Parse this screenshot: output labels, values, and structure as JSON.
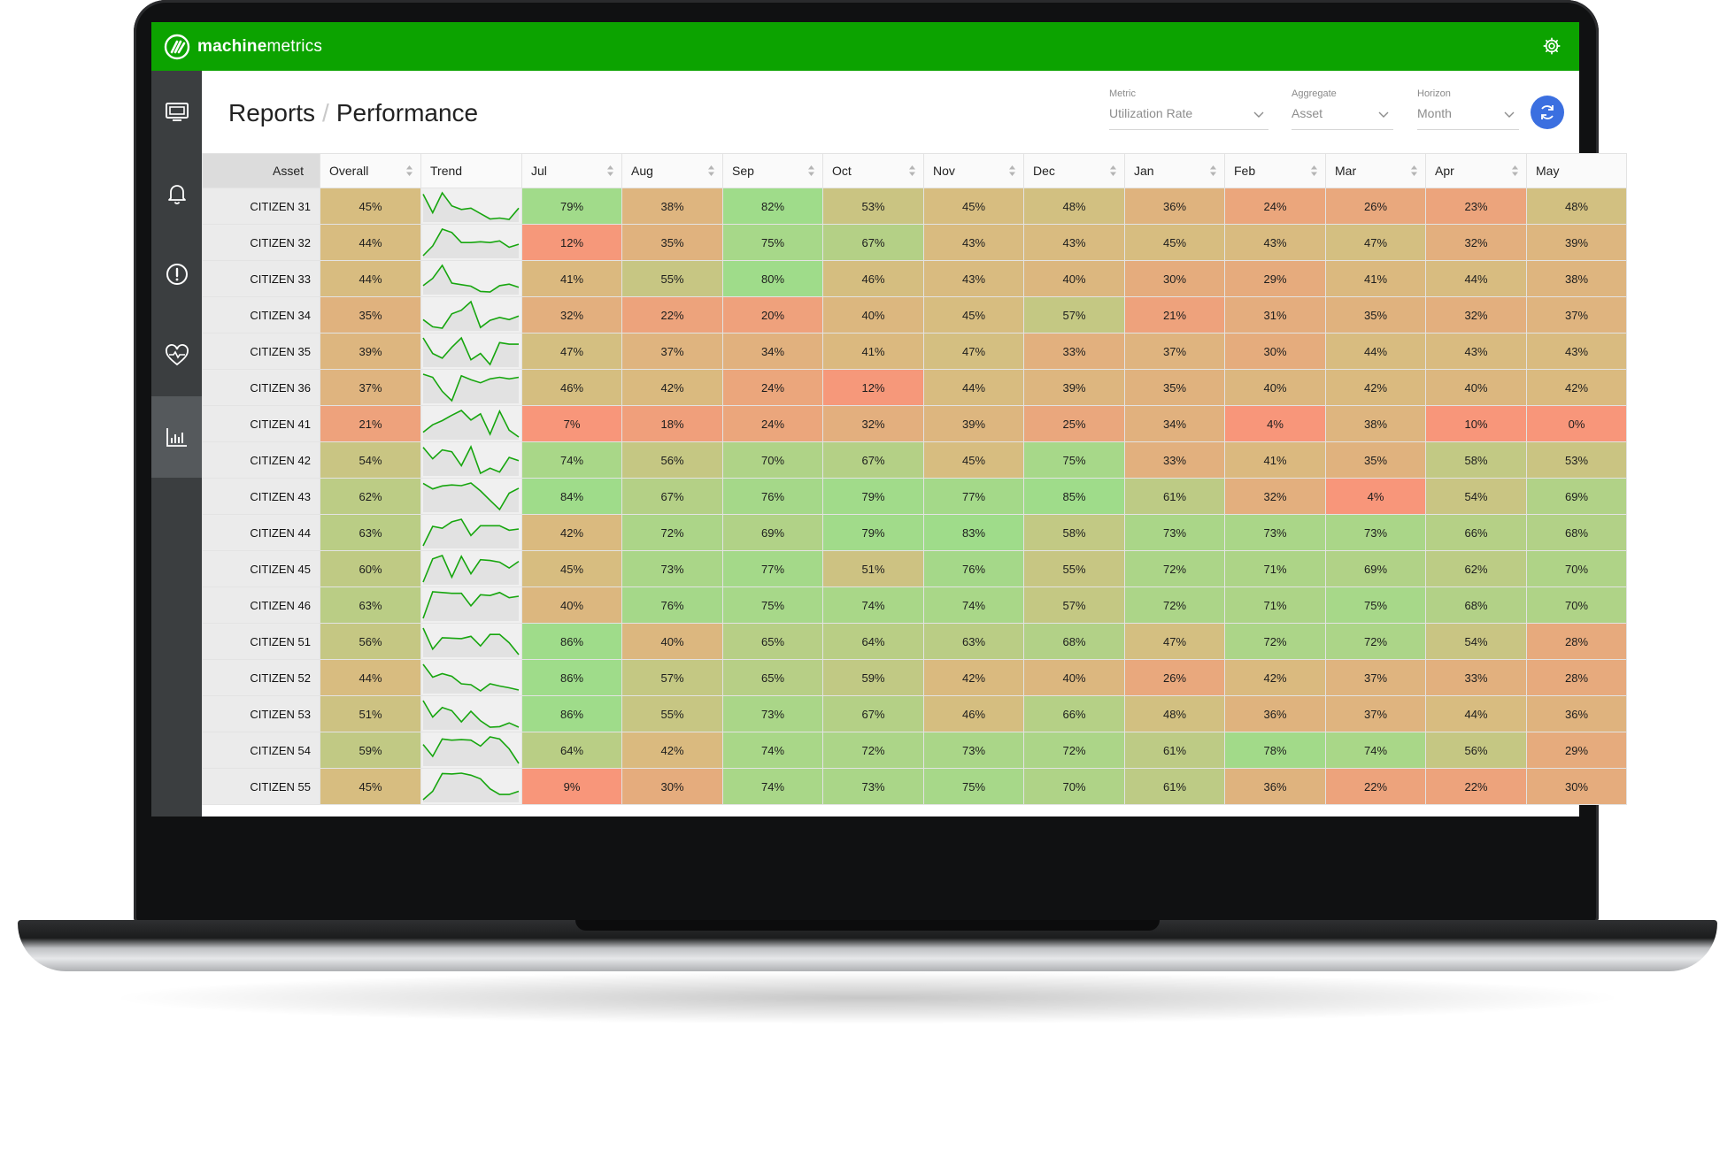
{
  "app": {
    "brand_bold": "machine",
    "brand_light": "metrics"
  },
  "breadcrumb": {
    "root": "Reports",
    "separator": "/",
    "current": "Performance"
  },
  "controls": {
    "metric": {
      "label": "Metric",
      "value": "Utilization Rate"
    },
    "aggregate": {
      "label": "Aggregate",
      "value": "Asset"
    },
    "horizon": {
      "label": "Horizon",
      "value": "Month"
    }
  },
  "sidebar": [
    {
      "name": "monitor",
      "icon": "monitor-icon"
    },
    {
      "name": "notifications",
      "icon": "bell-icon"
    },
    {
      "name": "alerts",
      "icon": "alert-circle-icon"
    },
    {
      "name": "health",
      "icon": "heart-pulse-icon"
    },
    {
      "name": "reports",
      "icon": "bar-chart-icon",
      "active": true
    }
  ],
  "colors": {
    "brand_green": "#0ca300",
    "sidebar": "#3b3e40",
    "refresh_button": "#3b6fe0",
    "low": "#f8967a",
    "mid": "#d7bd80",
    "high": "#9fdc8a"
  },
  "table": {
    "columns": [
      "Asset",
      "Overall",
      "Trend",
      "Jul",
      "Aug",
      "Sep",
      "Oct",
      "Nov",
      "Dec",
      "Jan",
      "Feb",
      "Mar",
      "Apr",
      "May"
    ],
    "rows": [
      {
        "asset": "CITIZEN 31",
        "overall": "45%",
        "months": [
          "79%",
          "38%",
          "82%",
          "53%",
          "45%",
          "48%",
          "36%",
          "24%",
          "26%",
          "23%",
          "48%"
        ]
      },
      {
        "asset": "CITIZEN 32",
        "overall": "44%",
        "months": [
          "12%",
          "35%",
          "75%",
          "67%",
          "43%",
          "43%",
          "45%",
          "43%",
          "47%",
          "32%",
          "39%"
        ]
      },
      {
        "asset": "CITIZEN 33",
        "overall": "44%",
        "months": [
          "41%",
          "55%",
          "80%",
          "46%",
          "43%",
          "40%",
          "30%",
          "29%",
          "41%",
          "44%",
          "38%"
        ]
      },
      {
        "asset": "CITIZEN 34",
        "overall": "35%",
        "months": [
          "32%",
          "22%",
          "20%",
          "40%",
          "45%",
          "57%",
          "21%",
          "31%",
          "35%",
          "32%",
          "37%"
        ]
      },
      {
        "asset": "CITIZEN 35",
        "overall": "39%",
        "months": [
          "47%",
          "37%",
          "34%",
          "41%",
          "47%",
          "33%",
          "37%",
          "30%",
          "44%",
          "43%",
          "43%"
        ]
      },
      {
        "asset": "CITIZEN 36",
        "overall": "37%",
        "months": [
          "46%",
          "42%",
          "24%",
          "12%",
          "44%",
          "39%",
          "35%",
          "40%",
          "42%",
          "40%",
          "42%"
        ]
      },
      {
        "asset": "CITIZEN 41",
        "overall": "21%",
        "months": [
          "7%",
          "18%",
          "24%",
          "32%",
          "39%",
          "25%",
          "34%",
          "4%",
          "38%",
          "10%",
          "0%"
        ]
      },
      {
        "asset": "CITIZEN 42",
        "overall": "54%",
        "months": [
          "74%",
          "56%",
          "70%",
          "67%",
          "45%",
          "75%",
          "33%",
          "41%",
          "35%",
          "58%",
          "53%"
        ]
      },
      {
        "asset": "CITIZEN 43",
        "overall": "62%",
        "months": [
          "84%",
          "67%",
          "76%",
          "79%",
          "77%",
          "85%",
          "61%",
          "32%",
          "4%",
          "54%",
          "69%"
        ]
      },
      {
        "asset": "CITIZEN 44",
        "overall": "63%",
        "months": [
          "42%",
          "72%",
          "69%",
          "79%",
          "83%",
          "58%",
          "73%",
          "73%",
          "73%",
          "66%",
          "68%"
        ]
      },
      {
        "asset": "CITIZEN 45",
        "overall": "60%",
        "months": [
          "45%",
          "73%",
          "77%",
          "51%",
          "76%",
          "55%",
          "72%",
          "71%",
          "69%",
          "62%",
          "70%"
        ]
      },
      {
        "asset": "CITIZEN 46",
        "overall": "63%",
        "months": [
          "40%",
          "76%",
          "75%",
          "74%",
          "74%",
          "57%",
          "72%",
          "71%",
          "75%",
          "68%",
          "70%"
        ]
      },
      {
        "asset": "CITIZEN 51",
        "overall": "56%",
        "months": [
          "86%",
          "40%",
          "65%",
          "64%",
          "63%",
          "68%",
          "47%",
          "72%",
          "72%",
          "54%",
          "28%"
        ]
      },
      {
        "asset": "CITIZEN 52",
        "overall": "44%",
        "months": [
          "86%",
          "57%",
          "65%",
          "59%",
          "42%",
          "40%",
          "26%",
          "42%",
          "37%",
          "33%",
          "28%"
        ]
      },
      {
        "asset": "CITIZEN 53",
        "overall": "51%",
        "months": [
          "86%",
          "55%",
          "73%",
          "67%",
          "46%",
          "66%",
          "48%",
          "36%",
          "37%",
          "44%",
          "36%"
        ]
      },
      {
        "asset": "CITIZEN 54",
        "overall": "59%",
        "months": [
          "64%",
          "42%",
          "74%",
          "72%",
          "73%",
          "72%",
          "61%",
          "78%",
          "74%",
          "56%",
          "29%"
        ]
      },
      {
        "asset": "CITIZEN 55",
        "overall": "45%",
        "months": [
          "9%",
          "30%",
          "74%",
          "73%",
          "75%",
          "70%",
          "61%",
          "36%",
          "22%",
          "22%",
          "30%"
        ]
      }
    ]
  }
}
